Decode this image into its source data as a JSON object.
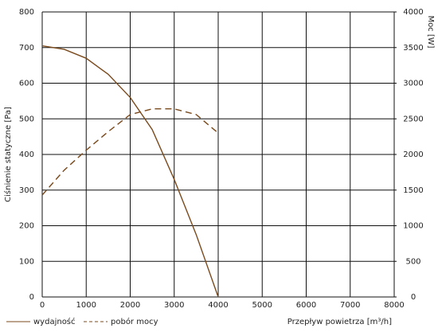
{
  "chart_data": {
    "type": "line",
    "y_label": "Ciśnienie statyczne [Pa]",
    "y2_label": "Moc [W]",
    "x_label": "Przepływ powietrza [m³/h]",
    "x": [
      0,
      500,
      1000,
      1500,
      2000,
      2500,
      3000,
      3500,
      4000
    ],
    "series": [
      {
        "name": "wydajność",
        "color": "#7a4a1c",
        "dash": false,
        "values": [
          705,
          695,
          670,
          625,
          560,
          470,
          330,
          175,
          0
        ]
      },
      {
        "name": "pobór mocy",
        "color": "#7a4a1c",
        "dash": true,
        "axis": "y2",
        "values": [
          1430,
          1780,
          2060,
          2320,
          2560,
          2640,
          2640,
          2560,
          2300
        ]
      }
    ],
    "xlim": [
      0,
      8000
    ],
    "xticks": [
      0,
      1000,
      2000,
      3000,
      4000,
      5000,
      6000,
      7000,
      8000
    ],
    "ylim": [
      0,
      800
    ],
    "yticks": [
      0,
      100,
      200,
      300,
      400,
      500,
      600,
      700,
      800
    ],
    "y2lim": [
      0,
      4000
    ],
    "y2ticks": [
      0,
      500,
      1000,
      1500,
      2000,
      2500,
      3000,
      3500,
      4000
    ],
    "grid": true
  }
}
